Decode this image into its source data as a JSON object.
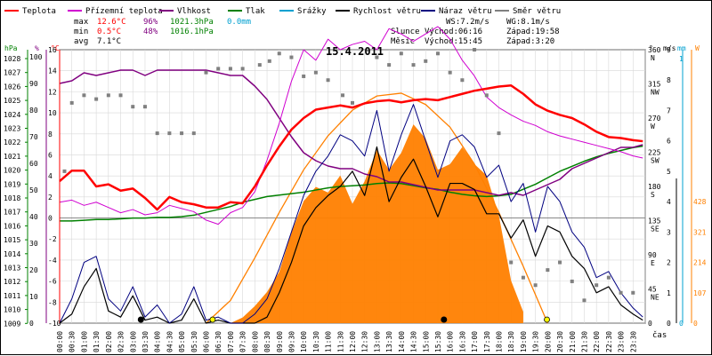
{
  "chart_data": {
    "type": "line",
    "title": "15.4.2011",
    "x_ticks": [
      "00:00",
      "00:30",
      "01:00",
      "01:30",
      "02:00",
      "02:30",
      "03:00",
      "03:30",
      "04:00",
      "04:30",
      "05:00",
      "05:30",
      "06:00",
      "06:30",
      "07:00",
      "07:30",
      "08:00",
      "08:30",
      "09:00",
      "09:30",
      "10:00",
      "10:30",
      "11:00",
      "11:30",
      "12:00",
      "12:30",
      "13:00",
      "13:30",
      "14:00",
      "14:30",
      "15:00",
      "15:30",
      "16:00",
      "16:30",
      "17:00",
      "17:30",
      "18:00",
      "18:30",
      "19:00",
      "19:30",
      "20:00",
      "20:30",
      "21:00",
      "21:30",
      "22:00",
      "22:30",
      "23:00",
      "23:30"
    ],
    "x_axis_label": "čas",
    "legend": [
      {
        "label": "Teplota",
        "color": "#ff0000"
      },
      {
        "label": "Přízemní teplota",
        "color": "#d000d0"
      },
      {
        "label": "Vlhkost",
        "color": "#800080"
      },
      {
        "label": "Tlak",
        "color": "#008000"
      },
      {
        "label": "Srážky",
        "color": "#00a0d0"
      },
      {
        "label": "Rychlost větru",
        "color": "#000000"
      },
      {
        "label": "Náraz větru",
        "color": "#000080"
      },
      {
        "label": "Směr větru",
        "color": "#808080"
      }
    ],
    "stats": {
      "max": {
        "label": "max",
        "temp": "12.6°C",
        "humidity": "96%",
        "pressure": "1021.3hPa",
        "rain": "0.0mm"
      },
      "min": {
        "label": "min",
        "temp": "0.5°C",
        "humidity": "48%",
        "pressure": "1016.1hPa"
      },
      "avg": {
        "label": "avg",
        "temp": "7.1°C"
      }
    },
    "wind": {
      "ws": "WS:7.2m/s",
      "wg": "WG:8.1m/s"
    },
    "sun": {
      "label": "Slunce",
      "rise": "Východ:06:16",
      "set": "Západ:19:58"
    },
    "moon": {
      "label": "Měsíc",
      "rise": "Východ:15:45",
      "set": "Západ:3:20"
    },
    "axes": {
      "pressure": {
        "unit": "hPa",
        "ticks": [
          "1028",
          "1027",
          "1026",
          "1025",
          "1024",
          "1023",
          "1022",
          "1021",
          "1020",
          "1019",
          "1018",
          "1017",
          "1016",
          "1015",
          "1014",
          "1013",
          "1012",
          "1011",
          "1010",
          "1009"
        ],
        "color": "#008000"
      },
      "humidity": {
        "unit": "%",
        "ticks": [
          "100",
          "90",
          "80",
          "70",
          "60",
          "50",
          "40",
          "30",
          "20",
          "10",
          "0"
        ],
        "color": "#800080"
      },
      "temperature": {
        "unit": "°C",
        "ticks": [
          "16",
          "14",
          "12",
          "10",
          "8",
          "6",
          "4",
          "2",
          "0",
          "-2",
          "-4",
          "-6",
          "-8",
          "-10"
        ],
        "color": "#ff0000"
      },
      "direction": {
        "unit": "°",
        "ticks": [
          {
            "deg": "360",
            "dir": "N"
          },
          {
            "deg": "315",
            "dir": "NW"
          },
          {
            "deg": "270",
            "dir": "W"
          },
          {
            "deg": "225",
            "dir": "SW"
          },
          {
            "deg": "180",
            "dir": "S"
          },
          {
            "deg": "135",
            "dir": "SE"
          },
          {
            "deg": "90",
            "dir": "E"
          },
          {
            "deg": "45",
            "dir": "NE"
          },
          {
            "deg": "0",
            "dir": ""
          }
        ]
      },
      "wind_speed": {
        "unit": "m/s",
        "ticks": [
          "9",
          "8",
          "7",
          "6",
          "5",
          "4",
          "3",
          "2",
          "1",
          "0"
        ]
      },
      "rain": {
        "unit": "mm",
        "ticks": [
          "1",
          "0"
        ],
        "color": "#00a0d0"
      },
      "solar": {
        "unit": "W",
        "ticks": [
          "963",
          "856",
          "749",
          "642",
          "535",
          "428",
          "321",
          "214",
          "107",
          "0"
        ],
        "color": "#ff8000"
      }
    },
    "series": {
      "temperature": {
        "name": "Teplota",
        "color": "#ff0000",
        "x": [
          0,
          0.5,
          1,
          1.5,
          2,
          2.5,
          3,
          3.5,
          4,
          4.5,
          5,
          5.5,
          6,
          6.5,
          7,
          7.5,
          8,
          8.5,
          9,
          9.5,
          10,
          10.5,
          11,
          11.5,
          12,
          12.5,
          13,
          13.5,
          14,
          14.5,
          15,
          15.5,
          16,
          16.5,
          17,
          17.5,
          18,
          18.5,
          19,
          19.5,
          20,
          20.5,
          21,
          21.5,
          22,
          22.5,
          23,
          23.5,
          23.9
        ],
        "y": [
          3.5,
          4.5,
          4.5,
          3,
          3.2,
          2.6,
          2.8,
          1.9,
          0.8,
          2,
          1.5,
          1.3,
          1,
          1,
          1.5,
          1.4,
          3,
          5,
          6.8,
          8.4,
          9.5,
          10.3,
          10.5,
          10.7,
          10.5,
          10.9,
          11.1,
          11.2,
          11,
          11.2,
          11.3,
          11.2,
          11.5,
          11.8,
          12.1,
          12.3,
          12.5,
          12.6,
          11.8,
          10.8,
          10.2,
          9.8,
          9.5,
          8.9,
          8.2,
          7.7,
          7.6,
          7.4,
          7.3
        ]
      },
      "ground_temp": {
        "name": "Přízemní teplota",
        "color": "#d000d0",
        "x": [
          0,
          0.5,
          1,
          1.5,
          2,
          2.5,
          3,
          3.5,
          4,
          4.5,
          5,
          5.5,
          6,
          6.5,
          7,
          7.5,
          8,
          8.5,
          9,
          9.5,
          10,
          10.5,
          11,
          11.5,
          12,
          12.5,
          13,
          13.5,
          14,
          14.5,
          15,
          15.5,
          16,
          16.5,
          17,
          17.5,
          18,
          18.5,
          19,
          19.5,
          20,
          20.5,
          21,
          21.5,
          22,
          22.5,
          23,
          23.5,
          23.9
        ],
        "y": [
          1.5,
          1.7,
          1.2,
          1.5,
          1,
          0.5,
          0.8,
          0.3,
          0.5,
          1.2,
          0.9,
          0.6,
          -0.2,
          -0.6,
          0.5,
          1,
          2.5,
          5.5,
          9,
          13,
          16,
          15,
          17,
          16,
          16.5,
          16.8,
          16,
          18,
          17.5,
          16.8,
          17.5,
          18.2,
          17,
          15,
          13.5,
          11.5,
          10.5,
          9.8,
          9.2,
          8.8,
          8.2,
          7.8,
          7.5,
          7.2,
          6.9,
          6.6,
          6.3,
          5.9,
          5.7
        ]
      },
      "humidity": {
        "name": "Vlhkost",
        "color": "#800080",
        "x": [
          0,
          0.5,
          1,
          1.5,
          2,
          2.5,
          3,
          3.5,
          4,
          4.5,
          5,
          5.5,
          6,
          6.5,
          7,
          7.5,
          8,
          8.5,
          9,
          9.5,
          10,
          10.5,
          11,
          11.5,
          12,
          12.5,
          13,
          13.5,
          14,
          14.5,
          15,
          15.5,
          16,
          16.5,
          17,
          17.5,
          18,
          18.5,
          19,
          19.5,
          20,
          20.5,
          21,
          21.5,
          22,
          22.5,
          23,
          23.5,
          23.9
        ],
        "y": [
          90,
          91,
          94,
          93,
          94,
          95,
          95,
          93,
          95,
          95,
          95,
          95,
          95,
          94,
          93,
          93,
          89,
          84,
          77,
          70,
          64,
          61,
          59,
          58,
          58,
          56,
          55,
          53,
          53,
          52,
          51,
          50,
          50,
          50,
          50,
          49,
          48,
          49,
          48,
          50,
          52,
          54,
          58,
          60,
          62,
          64,
          66,
          66,
          67
        ]
      },
      "pressure": {
        "name": "Tlak",
        "color": "#008000",
        "x": [
          0,
          0.5,
          1,
          1.5,
          2,
          2.5,
          3,
          3.5,
          4,
          4.5,
          5,
          5.5,
          6,
          6.5,
          7,
          7.5,
          8,
          8.5,
          9,
          9.5,
          10,
          10.5,
          11,
          11.5,
          12,
          12.5,
          13,
          13.5,
          14,
          14.5,
          15,
          15.5,
          16,
          16.5,
          17,
          17.5,
          18,
          18.5,
          19,
          19.5,
          20,
          20.5,
          21,
          21.5,
          22,
          22.5,
          23,
          23.5,
          23.9
        ],
        "y": [
          1016.1,
          1016.1,
          1016.15,
          1016.2,
          1016.2,
          1016.25,
          1016.3,
          1016.3,
          1016.35,
          1016.35,
          1016.4,
          1016.5,
          1016.7,
          1016.9,
          1017.1,
          1017.4,
          1017.6,
          1017.8,
          1017.9,
          1018,
          1018.1,
          1018.25,
          1018.4,
          1018.5,
          1018.55,
          1018.6,
          1018.7,
          1018.75,
          1018.7,
          1018.55,
          1018.4,
          1018.3,
          1018.1,
          1017.95,
          1017.85,
          1017.8,
          1017.85,
          1017.95,
          1018.3,
          1018.65,
          1019.1,
          1019.55,
          1019.9,
          1020.25,
          1020.55,
          1020.8,
          1021,
          1021.2,
          1021.3
        ]
      },
      "wind_speed": {
        "name": "Rychlost větru",
        "color": "#000000",
        "x": [
          0,
          0.5,
          1,
          1.5,
          2,
          2.5,
          3,
          3.5,
          4,
          4.5,
          5,
          5.5,
          6,
          6.5,
          7,
          7.5,
          8,
          8.5,
          9,
          9.5,
          10,
          10.5,
          11,
          11.5,
          12,
          12.5,
          13,
          13.5,
          14,
          14.5,
          15,
          15.5,
          16,
          16.5,
          17,
          17.5,
          18,
          18.5,
          19,
          19.5,
          20,
          20.5,
          21,
          21.5,
          22,
          22.5,
          23,
          23.5,
          23.9
        ],
        "y": [
          0,
          0.3,
          1.2,
          1.8,
          0.4,
          0.2,
          0.9,
          0.1,
          0.2,
          0,
          0.1,
          0.8,
          0,
          0.1,
          0,
          0,
          0,
          0.2,
          1,
          2,
          3.2,
          3.8,
          4.2,
          4.5,
          5,
          4.2,
          5.8,
          4,
          4.8,
          5.4,
          4.5,
          3.5,
          4.6,
          4.6,
          4.4,
          3.6,
          3.6,
          2.8,
          3.4,
          2.2,
          3.2,
          3,
          2.2,
          1.8,
          1,
          1.2,
          0.6,
          0.3,
          0.1
        ]
      },
      "wind_gust": {
        "name": "Náraz větru",
        "color": "#000080",
        "x": [
          0,
          0.5,
          1,
          1.5,
          2,
          2.5,
          3,
          3.5,
          4,
          4.5,
          5,
          5.5,
          6,
          6.5,
          7,
          7.5,
          8,
          8.5,
          9,
          9.5,
          10,
          10.5,
          11,
          11.5,
          12,
          12.5,
          13,
          13.5,
          14,
          14.5,
          15,
          15.5,
          16,
          16.5,
          17,
          17.5,
          18,
          18.5,
          19,
          19.5,
          20,
          20.5,
          21,
          21.5,
          22,
          22.5,
          23,
          23.5,
          23.9
        ],
        "y": [
          0,
          0.8,
          2,
          2.2,
          0.8,
          0.4,
          1.2,
          0.2,
          0.6,
          0,
          0.3,
          1.2,
          0.1,
          0.2,
          0,
          0,
          0.3,
          0.8,
          1.8,
          3,
          4.2,
          5,
          5.5,
          6.2,
          6,
          5.5,
          7,
          5,
          6.2,
          7.2,
          6,
          4.8,
          6,
          6.2,
          5.8,
          4.8,
          5.2,
          4,
          4.6,
          3,
          4.5,
          4,
          3,
          2.5,
          1.5,
          1.7,
          1,
          0.5,
          0.2
        ]
      },
      "wind_dir": {
        "name": "Směr větru",
        "color": "#808080",
        "x": [
          0.2,
          0.5,
          1,
          1.5,
          2,
          2.5,
          3,
          3.5,
          4,
          4.5,
          5,
          5.5,
          6,
          6.5,
          7,
          7.5,
          8.2,
          8.6,
          9,
          9.5,
          10,
          10.5,
          11,
          11.6,
          12,
          13,
          13.5,
          14,
          14.5,
          15,
          15.5,
          16,
          16.5,
          17,
          17.5,
          18,
          18.5,
          19,
          19.5,
          20,
          20.5,
          21,
          21.5,
          22,
          22.5,
          23,
          23.5
        ],
        "y": [
          200,
          290,
          300,
          295,
          300,
          300,
          285,
          285,
          250,
          250,
          250,
          250,
          330,
          335,
          335,
          335,
          340,
          345,
          355,
          350,
          325,
          330,
          320,
          300,
          290,
          350,
          340,
          355,
          340,
          345,
          355,
          330,
          320,
          360,
          300,
          250,
          80,
          60,
          50,
          70,
          80,
          55,
          30,
          50,
          60,
          40,
          40
        ]
      },
      "solar": {
        "name": "",
        "color": "#ff8000",
        "x": [
          7,
          7.5,
          8,
          8.5,
          9,
          9.5,
          10,
          10.5,
          11,
          11.5,
          12,
          12.5,
          13,
          13.5,
          14,
          14.5,
          15,
          15.5,
          16,
          16.5,
          17,
          17.5,
          18,
          18.5,
          19
        ],
        "y": [
          0,
          20,
          60,
          110,
          180,
          320,
          430,
          480,
          460,
          520,
          420,
          500,
          610,
          540,
          600,
          700,
          650,
          540,
          560,
          620,
          560,
          520,
          380,
          150,
          40
        ]
      },
      "solar_theoretical": {
        "name": "",
        "color": "#ff8000",
        "x": [
          6,
          7,
          8,
          9,
          10,
          11,
          12,
          13,
          14,
          15,
          16,
          17,
          18,
          19,
          20
        ],
        "y": [
          0,
          80,
          230,
          390,
          540,
          660,
          750,
          800,
          810,
          770,
          690,
          560,
          390,
          200,
          0
        ]
      }
    }
  }
}
